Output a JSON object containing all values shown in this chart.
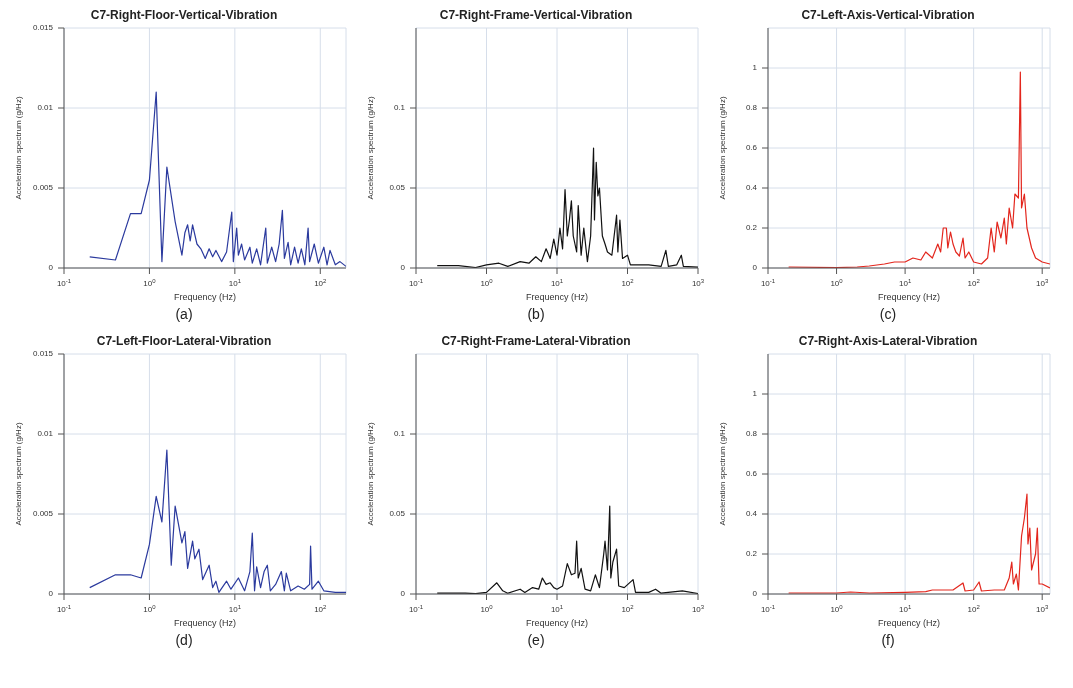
{
  "chart_data": [
    {
      "type": "line",
      "title": "C7-Right-Floor-Vertical-Vibration",
      "xlabel": "Frequency (Hz)",
      "ylabel": "Acceleration spectrum (g/Hz)",
      "log": "x",
      "grid": true,
      "annotations": [
        "(a)"
      ],
      "x": [
        0.2,
        0.4,
        0.6,
        0.8,
        1.0,
        1.2,
        1.4,
        1.6,
        2.0,
        2.4,
        2.6,
        2.8,
        3.0,
        3.2,
        3.6,
        4.0,
        4.5,
        5,
        5.5,
        6,
        7,
        8,
        9.2,
        9.6,
        10.5,
        11,
        12,
        13,
        15,
        16,
        18,
        20,
        23,
        24,
        27,
        30,
        33,
        36,
        38,
        42,
        45,
        50,
        55,
        60,
        66,
        72,
        75,
        85,
        95,
        110,
        120,
        130,
        150,
        170,
        200
      ],
      "series": [
        {
          "color": "#2b3a9e",
          "values": [
            0.0007,
            0.0005,
            0.0034,
            0.0034,
            0.0055,
            0.011,
            0.0004,
            0.0063,
            0.0029,
            0.0008,
            0.0022,
            0.0027,
            0.0017,
            0.0027,
            0.0015,
            0.0012,
            0.0006,
            0.0012,
            0.0007,
            0.0011,
            0.0004,
            0.001,
            0.0035,
            0.0004,
            0.0025,
            0.0008,
            0.0015,
            0.0005,
            0.0013,
            0.0003,
            0.0012,
            0.0002,
            0.0025,
            0.0003,
            0.0013,
            0.0004,
            0.0015,
            0.0036,
            0.0006,
            0.0016,
            0.0002,
            0.0013,
            0.0003,
            0.0012,
            0.0002,
            0.0025,
            0.0004,
            0.0015,
            0.0003,
            0.0013,
            0.0002,
            0.0011,
            0.0002,
            0.0004,
            0.0001
          ]
        }
      ],
      "xlim": [
        0.1,
        200
      ],
      "xticks": [
        {
          "value": 0.1,
          "label": "10$^{-1}$"
        },
        {
          "value": 1,
          "label": "10$^{0}$"
        },
        {
          "value": 10,
          "label": "10$^{1}$"
        },
        {
          "value": 100,
          "label": "10$^{2}$"
        }
      ],
      "ylim": [
        0,
        0.015
      ],
      "yticks": [
        0,
        0.005,
        0.01,
        0.015
      ]
    },
    {
      "type": "line",
      "title": "C7-Right-Frame-Vertical-Vibration",
      "xlabel": "Frequency (Hz)",
      "ylabel": "Acceleration spectrum (g/Hz)",
      "log": "x",
      "grid": true,
      "annotations": [
        "(b)"
      ],
      "x": [
        0.2,
        0.4,
        0.7,
        1.0,
        1.5,
        2,
        3,
        4,
        5,
        6,
        7,
        8,
        9,
        10,
        11,
        12,
        13,
        14,
        15,
        16,
        17,
        19,
        20,
        22,
        24,
        27,
        30,
        33,
        34,
        36,
        38,
        40,
        44,
        48,
        52,
        60,
        70,
        73,
        78,
        85,
        100,
        110,
        150,
        200,
        300,
        350,
        380,
        500,
        580,
        620,
        1000
      ],
      "series": [
        {
          "color": "#111111",
          "values": [
            0.0015,
            0.0015,
            0.0003,
            0.002,
            0.003,
            0.001,
            0.004,
            0.003,
            0.007,
            0.004,
            0.012,
            0.006,
            0.018,
            0.008,
            0.025,
            0.012,
            0.049,
            0.02,
            0.03,
            0.042,
            0.02,
            0.01,
            0.039,
            0.008,
            0.025,
            0.004,
            0.02,
            0.075,
            0.03,
            0.066,
            0.045,
            0.05,
            0.02,
            0.015,
            0.01,
            0.008,
            0.033,
            0.01,
            0.03,
            0.006,
            0.008,
            0.002,
            0.002,
            0.002,
            0.001,
            0.011,
            0.001,
            0.002,
            0.008,
            0.001,
            0.0005
          ]
        }
      ],
      "xlim": [
        0.1,
        1000
      ],
      "xticks": [
        {
          "value": 0.1,
          "label": "10$^{-1}$"
        },
        {
          "value": 1,
          "label": "10$^{0}$"
        },
        {
          "value": 10,
          "label": "10$^{1}$"
        },
        {
          "value": 100,
          "label": "10$^{2}$"
        },
        {
          "value": 1000,
          "label": "10$^{3}$"
        }
      ],
      "ylim": [
        0,
        0.15
      ],
      "yticks": [
        0,
        0.05,
        0.1
      ]
    },
    {
      "type": "line",
      "title": "C7-Left-Axis-Vertical-Vibration",
      "xlabel": "Frequency (Hz)",
      "ylabel": "Acceleration spectrum (g/Hz)",
      "log": "x",
      "grid": true,
      "annotations": [
        "(c)"
      ],
      "x": [
        0.2,
        1,
        2,
        3,
        5,
        7,
        10,
        13,
        17,
        20,
        25,
        30,
        33,
        36,
        40,
        42,
        46,
        50,
        55,
        62,
        70,
        75,
        85,
        100,
        130,
        160,
        180,
        200,
        220,
        250,
        280,
        300,
        330,
        370,
        400,
        450,
        480,
        500,
        550,
        600,
        700,
        800,
        1000,
        1300
      ],
      "series": [
        {
          "color": "#e3261d",
          "values": [
            0.005,
            0.002,
            0.005,
            0.01,
            0.02,
            0.03,
            0.03,
            0.05,
            0.04,
            0.08,
            0.05,
            0.12,
            0.08,
            0.2,
            0.2,
            0.1,
            0.18,
            0.12,
            0.08,
            0.06,
            0.15,
            0.05,
            0.08,
            0.03,
            0.02,
            0.05,
            0.2,
            0.08,
            0.23,
            0.15,
            0.25,
            0.12,
            0.3,
            0.2,
            0.37,
            0.35,
            0.98,
            0.3,
            0.37,
            0.2,
            0.1,
            0.05,
            0.03,
            0.02
          ]
        }
      ],
      "xlim": [
        0.1,
        1300
      ],
      "xticks": [
        {
          "value": 0.1,
          "label": "10$^{-1}$"
        },
        {
          "value": 1,
          "label": "10$^{0}$"
        },
        {
          "value": 10,
          "label": "10$^{1}$"
        },
        {
          "value": 100,
          "label": "10$^{2}$"
        },
        {
          "value": 1000,
          "label": "10$^{3}$"
        }
      ],
      "ylim": [
        0,
        1.2
      ],
      "yticks": [
        0,
        0.2,
        0.4,
        0.6,
        0.8,
        1
      ]
    },
    {
      "type": "line",
      "title": "C7-Left-Floor-Lateral-Vibration",
      "xlabel": "Frequency (Hz)",
      "ylabel": "Acceleration spectrum (g/Hz)",
      "log": "x",
      "grid": true,
      "annotations": [
        "(d)"
      ],
      "x": [
        0.2,
        0.4,
        0.6,
        0.8,
        1.0,
        1.2,
        1.4,
        1.6,
        1.8,
        2.0,
        2.4,
        2.6,
        2.8,
        3.2,
        3.4,
        3.8,
        4.2,
        5,
        5.5,
        6,
        6.5,
        8,
        9,
        11,
        13,
        15,
        16,
        17,
        18,
        20,
        22,
        24,
        26,
        30,
        35,
        38,
        40,
        45,
        55,
        65,
        75,
        77,
        80,
        95,
        110,
        150,
        200
      ],
      "series": [
        {
          "color": "#2b3a9e",
          "values": [
            0.0004,
            0.0012,
            0.0012,
            0.001,
            0.0031,
            0.0061,
            0.0045,
            0.009,
            0.0018,
            0.0055,
            0.0032,
            0.0039,
            0.0016,
            0.0033,
            0.0022,
            0.0028,
            0.0009,
            0.0018,
            0.0004,
            0.0008,
            0.0001,
            0.0008,
            0.0003,
            0.001,
            0.0002,
            0.0014,
            0.0038,
            0.0002,
            0.0017,
            0.0004,
            0.0014,
            0.0018,
            0.0002,
            0.0006,
            0.0014,
            0.0002,
            0.0013,
            0.0002,
            0.0005,
            0.0003,
            0.0006,
            0.003,
            0.0003,
            0.0008,
            0.0002,
            0.0001,
            0.0001
          ]
        }
      ],
      "xlim": [
        0.1,
        200
      ],
      "xticks": [
        {
          "value": 0.1,
          "label": "10$^{-1}$"
        },
        {
          "value": 1,
          "label": "10$^{0}$"
        },
        {
          "value": 10,
          "label": "10$^{1}$"
        },
        {
          "value": 100,
          "label": "10$^{2}$"
        }
      ],
      "ylim": [
        0,
        0.015
      ],
      "yticks": [
        0,
        0.005,
        0.01,
        0.015
      ]
    },
    {
      "type": "line",
      "title": "C7-Right-Frame-Lateral-Vibration",
      "xlabel": "Frequency (Hz)",
      "ylabel": "Acceleration spectrum (g/Hz)",
      "log": "x",
      "grid": true,
      "annotations": [
        "(e)"
      ],
      "x": [
        0.2,
        0.5,
        0.7,
        1.0,
        1.4,
        1.7,
        2,
        3,
        3.5,
        4.5,
        5.5,
        6.2,
        7,
        8,
        9,
        10,
        12,
        14,
        16,
        18,
        19,
        20,
        22,
        25,
        30,
        35,
        40,
        46,
        48,
        52,
        56,
        58,
        62,
        70,
        75,
        90,
        120,
        130,
        200,
        250,
        300,
        600,
        1000
      ],
      "series": [
        {
          "color": "#111111",
          "values": [
            0.0006,
            0.0006,
            0.0002,
            0.001,
            0.007,
            0.002,
            0.0005,
            0.003,
            0.001,
            0.004,
            0.003,
            0.01,
            0.006,
            0.007,
            0.004,
            0.003,
            0.005,
            0.019,
            0.012,
            0.013,
            0.033,
            0.01,
            0.016,
            0.003,
            0.002,
            0.012,
            0.004,
            0.025,
            0.033,
            0.015,
            0.055,
            0.01,
            0.02,
            0.028,
            0.005,
            0.004,
            0.009,
            0.001,
            0.001,
            0.003,
            0.0005,
            0.002,
            0.0003
          ]
        }
      ],
      "xlim": [
        0.1,
        1000
      ],
      "xticks": [
        {
          "value": 0.1,
          "label": "10$^{-1}$"
        },
        {
          "value": 1,
          "label": "10$^{0}$"
        },
        {
          "value": 10,
          "label": "10$^{1}$"
        },
        {
          "value": 100,
          "label": "10$^{2}$"
        },
        {
          "value": 1000,
          "label": "10$^{3}$"
        }
      ],
      "ylim": [
        0,
        0.15
      ],
      "yticks": [
        0,
        0.05,
        0.1
      ]
    },
    {
      "type": "line",
      "title": "C7-Right-Axis-Lateral-Vibration",
      "xlabel": "Frequency (Hz)",
      "ylabel": "Acceleration spectrum (g/Hz)",
      "log": "x",
      "grid": true,
      "annotations": [
        "(f)"
      ],
      "x": [
        0.2,
        1,
        1.6,
        3,
        10,
        20,
        25,
        50,
        70,
        75,
        100,
        120,
        130,
        200,
        280,
        330,
        360,
        380,
        420,
        450,
        500,
        550,
        600,
        620,
        660,
        700,
        800,
        850,
        900,
        1000,
        1300
      ],
      "series": [
        {
          "color": "#e3261d",
          "values": [
            0.005,
            0.005,
            0.01,
            0.005,
            0.008,
            0.012,
            0.02,
            0.02,
            0.055,
            0.015,
            0.02,
            0.06,
            0.015,
            0.02,
            0.02,
            0.08,
            0.16,
            0.05,
            0.1,
            0.02,
            0.29,
            0.38,
            0.5,
            0.25,
            0.33,
            0.12,
            0.2,
            0.33,
            0.05,
            0.05,
            0.03
          ]
        }
      ],
      "xlim": [
        0.1,
        1300
      ],
      "xticks": [
        {
          "value": 0.1,
          "label": "10$^{-1}$"
        },
        {
          "value": 1,
          "label": "10$^{0}$"
        },
        {
          "value": 10,
          "label": "10$^{1}$"
        },
        {
          "value": 100,
          "label": "10$^{2}$"
        },
        {
          "value": 1000,
          "label": "10$^{3}$"
        }
      ],
      "ylim": [
        0,
        1.2
      ],
      "yticks": [
        0,
        0.2,
        0.4,
        0.6,
        0.8,
        1
      ]
    }
  ]
}
